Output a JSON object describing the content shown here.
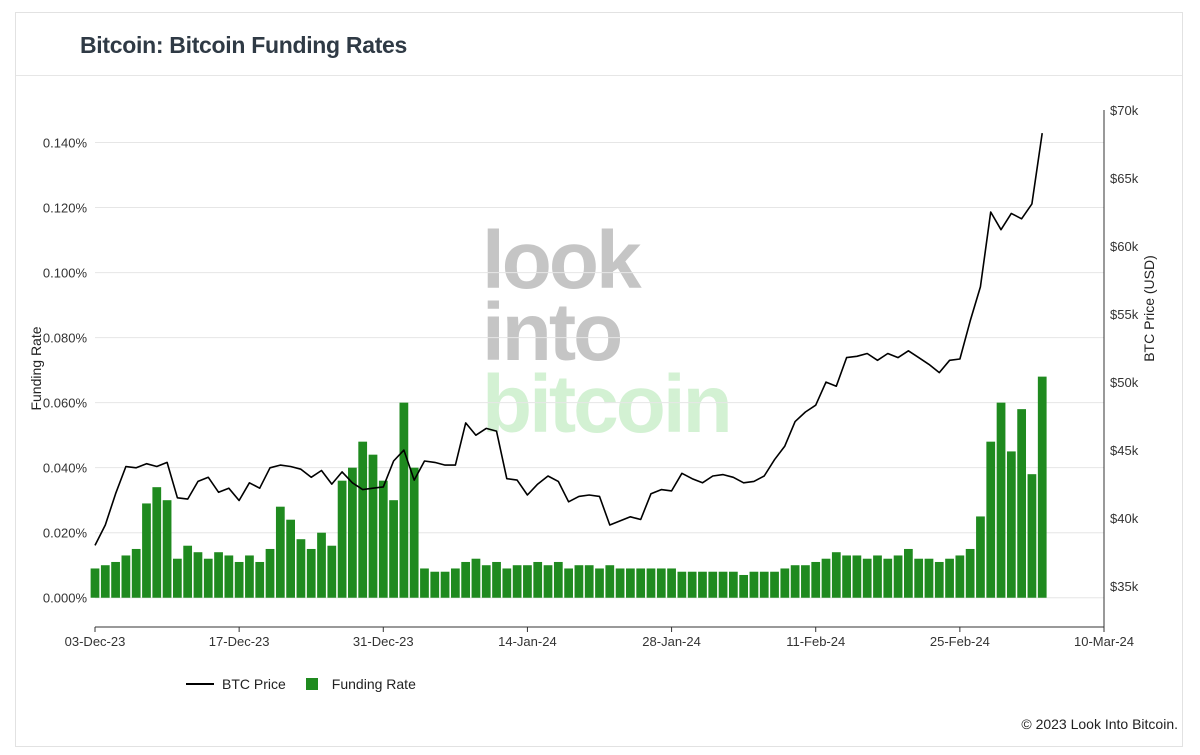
{
  "title": "Bitcoin: Bitcoin Funding Rates",
  "copyright": "© 2023 Look Into Bitcoin.",
  "watermark": [
    "look",
    "into",
    "bitcoin"
  ],
  "colors": {
    "price_line": "#000000",
    "funding_bar": "#1f8a1f",
    "grid": "#e6e6e6",
    "title": "#2f3a45"
  },
  "chart_data": {
    "type": "bar+line",
    "x_axis": {
      "start": "2023-12-03",
      "end": "2024-03-10",
      "ticks": [
        "03-Dec-23",
        "17-Dec-23",
        "31-Dec-23",
        "14-Jan-24",
        "28-Jan-24",
        "11-Feb-24",
        "25-Feb-24",
        "10-Mar-24"
      ]
    },
    "y_left": {
      "label": "Funding Rate",
      "range": [
        -0.009,
        0.15
      ],
      "ticks": [
        "0.000%",
        "0.020%",
        "0.040%",
        "0.060%",
        "0.080%",
        "0.100%",
        "0.120%",
        "0.140%"
      ],
      "tick_values": [
        0,
        0.02,
        0.04,
        0.06,
        0.08,
        0.1,
        0.12,
        0.14
      ]
    },
    "y_right": {
      "label": "BTC Price (USD)",
      "range": [
        32000,
        70000
      ],
      "ticks": [
        "$35k",
        "$40k",
        "$45k",
        "$50k",
        "$55k",
        "$60k",
        "$65k",
        "$70k"
      ],
      "tick_values": [
        35000,
        40000,
        45000,
        50000,
        55000,
        60000,
        65000,
        70000
      ]
    },
    "grid": true,
    "legend_position": "bottom-left",
    "series": [
      {
        "name": "BTC Price",
        "type": "line",
        "points": [
          [
            "2023-12-03",
            38000
          ],
          [
            "2023-12-04",
            39500
          ],
          [
            "2023-12-05",
            41800
          ],
          [
            "2023-12-06",
            43800
          ],
          [
            "2023-12-07",
            43700
          ],
          [
            "2023-12-08",
            44000
          ],
          [
            "2023-12-09",
            43800
          ],
          [
            "2023-12-10",
            44100
          ],
          [
            "2023-12-11",
            41500
          ],
          [
            "2023-12-12",
            41400
          ],
          [
            "2023-12-13",
            42700
          ],
          [
            "2023-12-14",
            43000
          ],
          [
            "2023-12-15",
            41900
          ],
          [
            "2023-12-16",
            42200
          ],
          [
            "2023-12-17",
            41300
          ],
          [
            "2023-12-18",
            42600
          ],
          [
            "2023-12-19",
            42200
          ],
          [
            "2023-12-20",
            43700
          ],
          [
            "2023-12-21",
            43900
          ],
          [
            "2023-12-22",
            43800
          ],
          [
            "2023-12-23",
            43600
          ],
          [
            "2023-12-24",
            43000
          ],
          [
            "2023-12-25",
            43500
          ],
          [
            "2023-12-26",
            42500
          ],
          [
            "2023-12-27",
            43400
          ],
          [
            "2023-12-28",
            42600
          ],
          [
            "2023-12-29",
            42100
          ],
          [
            "2023-12-30",
            42200
          ],
          [
            "2023-12-31",
            42300
          ],
          [
            "2024-01-01",
            44200
          ],
          [
            "2024-01-02",
            45000
          ],
          [
            "2024-01-03",
            42800
          ],
          [
            "2024-01-04",
            44200
          ],
          [
            "2024-01-05",
            44100
          ],
          [
            "2024-01-06",
            43900
          ],
          [
            "2024-01-07",
            43900
          ],
          [
            "2024-01-08",
            47000
          ],
          [
            "2024-01-09",
            46100
          ],
          [
            "2024-01-10",
            46600
          ],
          [
            "2024-01-11",
            46400
          ],
          [
            "2024-01-12",
            42900
          ],
          [
            "2024-01-13",
            42800
          ],
          [
            "2024-01-14",
            41700
          ],
          [
            "2024-01-15",
            42500
          ],
          [
            "2024-01-16",
            43100
          ],
          [
            "2024-01-17",
            42700
          ],
          [
            "2024-01-18",
            41200
          ],
          [
            "2024-01-19",
            41600
          ],
          [
            "2024-01-20",
            41700
          ],
          [
            "2024-01-21",
            41600
          ],
          [
            "2024-01-22",
            39500
          ],
          [
            "2024-01-23",
            39800
          ],
          [
            "2024-01-24",
            40100
          ],
          [
            "2024-01-25",
            39900
          ],
          [
            "2024-01-26",
            41800
          ],
          [
            "2024-01-27",
            42100
          ],
          [
            "2024-01-28",
            42000
          ],
          [
            "2024-01-29",
            43300
          ],
          [
            "2024-01-30",
            42900
          ],
          [
            "2024-01-31",
            42600
          ],
          [
            "2024-02-01",
            43100
          ],
          [
            "2024-02-02",
            43200
          ],
          [
            "2024-02-03",
            43000
          ],
          [
            "2024-02-04",
            42600
          ],
          [
            "2024-02-05",
            42700
          ],
          [
            "2024-02-06",
            43100
          ],
          [
            "2024-02-07",
            44300
          ],
          [
            "2024-02-08",
            45300
          ],
          [
            "2024-02-09",
            47100
          ],
          [
            "2024-02-10",
            47800
          ],
          [
            "2024-02-11",
            48300
          ],
          [
            "2024-02-12",
            50000
          ],
          [
            "2024-02-13",
            49700
          ],
          [
            "2024-02-14",
            51800
          ],
          [
            "2024-02-15",
            51900
          ],
          [
            "2024-02-16",
            52100
          ],
          [
            "2024-02-17",
            51600
          ],
          [
            "2024-02-18",
            52100
          ],
          [
            "2024-02-19",
            51800
          ],
          [
            "2024-02-20",
            52300
          ],
          [
            "2024-02-21",
            51800
          ],
          [
            "2024-02-22",
            51300
          ],
          [
            "2024-02-23",
            50700
          ],
          [
            "2024-02-24",
            51600
          ],
          [
            "2024-02-25",
            51700
          ],
          [
            "2024-02-26",
            54500
          ],
          [
            "2024-02-27",
            57000
          ],
          [
            "2024-02-28",
            62500
          ],
          [
            "2024-02-29",
            61200
          ],
          [
            "2024-03-01",
            62400
          ],
          [
            "2024-03-02",
            62000
          ],
          [
            "2024-03-03",
            63100
          ],
          [
            "2024-03-04",
            68300
          ]
        ]
      },
      {
        "name": "Funding Rate",
        "type": "bar",
        "points": [
          [
            "2023-12-03",
            0.009
          ],
          [
            "2023-12-04",
            0.01
          ],
          [
            "2023-12-05",
            0.011
          ],
          [
            "2023-12-06",
            0.013
          ],
          [
            "2023-12-07",
            0.015
          ],
          [
            "2023-12-08",
            0.029
          ],
          [
            "2023-12-09",
            0.034
          ],
          [
            "2023-12-10",
            0.03
          ],
          [
            "2023-12-11",
            0.012
          ],
          [
            "2023-12-12",
            0.016
          ],
          [
            "2023-12-13",
            0.014
          ],
          [
            "2023-12-14",
            0.012
          ],
          [
            "2023-12-15",
            0.014
          ],
          [
            "2023-12-16",
            0.013
          ],
          [
            "2023-12-17",
            0.011
          ],
          [
            "2023-12-18",
            0.013
          ],
          [
            "2023-12-19",
            0.011
          ],
          [
            "2023-12-20",
            0.015
          ],
          [
            "2023-12-21",
            0.028
          ],
          [
            "2023-12-22",
            0.024
          ],
          [
            "2023-12-23",
            0.018
          ],
          [
            "2023-12-24",
            0.015
          ],
          [
            "2023-12-25",
            0.02
          ],
          [
            "2023-12-26",
            0.016
          ],
          [
            "2023-12-27",
            0.036
          ],
          [
            "2023-12-28",
            0.04
          ],
          [
            "2023-12-29",
            0.048
          ],
          [
            "2023-12-30",
            0.044
          ],
          [
            "2023-12-31",
            0.036
          ],
          [
            "2024-01-01",
            0.03
          ],
          [
            "2024-01-02",
            0.06
          ],
          [
            "2024-01-03",
            0.04
          ],
          [
            "2024-01-04",
            0.009
          ],
          [
            "2024-01-05",
            0.008
          ],
          [
            "2024-01-06",
            0.008
          ],
          [
            "2024-01-07",
            0.009
          ],
          [
            "2024-01-08",
            0.011
          ],
          [
            "2024-01-09",
            0.012
          ],
          [
            "2024-01-10",
            0.01
          ],
          [
            "2024-01-11",
            0.011
          ],
          [
            "2024-01-12",
            0.009
          ],
          [
            "2024-01-13",
            0.01
          ],
          [
            "2024-01-14",
            0.01
          ],
          [
            "2024-01-15",
            0.011
          ],
          [
            "2024-01-16",
            0.01
          ],
          [
            "2024-01-17",
            0.011
          ],
          [
            "2024-01-18",
            0.009
          ],
          [
            "2024-01-19",
            0.01
          ],
          [
            "2024-01-20",
            0.01
          ],
          [
            "2024-01-21",
            0.009
          ],
          [
            "2024-01-22",
            0.01
          ],
          [
            "2024-01-23",
            0.009
          ],
          [
            "2024-01-24",
            0.009
          ],
          [
            "2024-01-25",
            0.009
          ],
          [
            "2024-01-26",
            0.009
          ],
          [
            "2024-01-27",
            0.009
          ],
          [
            "2024-01-28",
            0.009
          ],
          [
            "2024-01-29",
            0.008
          ],
          [
            "2024-01-30",
            0.008
          ],
          [
            "2024-01-31",
            0.008
          ],
          [
            "2024-02-01",
            0.008
          ],
          [
            "2024-02-02",
            0.008
          ],
          [
            "2024-02-03",
            0.008
          ],
          [
            "2024-02-04",
            0.007
          ],
          [
            "2024-02-05",
            0.008
          ],
          [
            "2024-02-06",
            0.008
          ],
          [
            "2024-02-07",
            0.008
          ],
          [
            "2024-02-08",
            0.009
          ],
          [
            "2024-02-09",
            0.01
          ],
          [
            "2024-02-10",
            0.01
          ],
          [
            "2024-02-11",
            0.011
          ],
          [
            "2024-02-12",
            0.012
          ],
          [
            "2024-02-13",
            0.014
          ],
          [
            "2024-02-14",
            0.013
          ],
          [
            "2024-02-15",
            0.013
          ],
          [
            "2024-02-16",
            0.012
          ],
          [
            "2024-02-17",
            0.013
          ],
          [
            "2024-02-18",
            0.012
          ],
          [
            "2024-02-19",
            0.013
          ],
          [
            "2024-02-20",
            0.015
          ],
          [
            "2024-02-21",
            0.012
          ],
          [
            "2024-02-22",
            0.012
          ],
          [
            "2024-02-23",
            0.011
          ],
          [
            "2024-02-24",
            0.012
          ],
          [
            "2024-02-25",
            0.013
          ],
          [
            "2024-02-26",
            0.015
          ],
          [
            "2024-02-27",
            0.025
          ],
          [
            "2024-02-28",
            0.048
          ],
          [
            "2024-02-29",
            0.06
          ],
          [
            "2024-03-01",
            0.045
          ],
          [
            "2024-03-02",
            0.058
          ],
          [
            "2024-03-03",
            0.038
          ],
          [
            "2024-03-04",
            0.068
          ]
        ]
      }
    ]
  }
}
